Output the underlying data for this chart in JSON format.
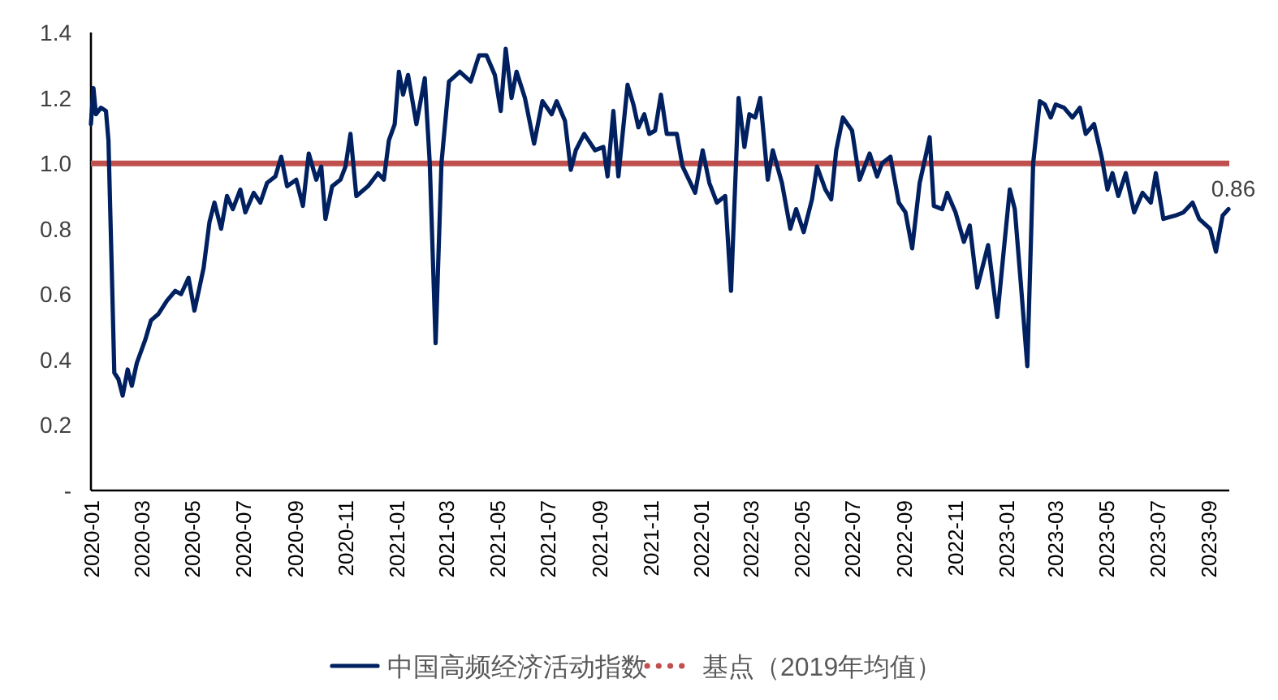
{
  "chart_data": {
    "type": "line",
    "x": [
      "2020-01-01",
      "2020-01-04",
      "2020-01-07",
      "2020-01-13",
      "2020-01-19",
      "2020-01-22",
      "2020-01-26",
      "2020-01-29",
      "2020-02-03",
      "2020-02-08",
      "2020-02-14",
      "2020-02-19",
      "2020-02-25",
      "2020-03-06",
      "2020-03-13",
      "2020-03-22",
      "2020-04-01",
      "2020-04-11",
      "2020-04-18",
      "2020-04-27",
      "2020-05-04",
      "2020-05-10",
      "2020-05-15",
      "2020-05-22",
      "2020-05-28",
      "2020-06-05",
      "2020-06-12",
      "2020-06-19",
      "2020-06-28",
      "2020-07-04",
      "2020-07-14",
      "2020-07-22",
      "2020-07-30",
      "2020-08-09",
      "2020-08-16",
      "2020-08-23",
      "2020-09-03",
      "2020-09-11",
      "2020-09-18",
      "2020-09-27",
      "2020-10-03",
      "2020-10-08",
      "2020-10-16",
      "2020-10-26",
      "2020-11-01",
      "2020-11-07",
      "2020-11-14",
      "2020-11-28",
      "2020-12-10",
      "2020-12-17",
      "2020-12-23",
      "2020-12-30",
      "2021-01-04",
      "2021-01-09",
      "2021-01-15",
      "2021-01-25",
      "2021-02-04",
      "2021-02-10",
      "2021-02-17",
      "2021-02-24",
      "2021-03-05",
      "2021-03-18",
      "2021-03-31",
      "2021-04-10",
      "2021-04-19",
      "2021-04-29",
      "2021-05-06",
      "2021-05-12",
      "2021-05-19",
      "2021-05-25",
      "2021-06-04",
      "2021-06-15",
      "2021-06-25",
      "2021-07-06",
      "2021-07-12",
      "2021-07-22",
      "2021-07-29",
      "2021-08-04",
      "2021-08-14",
      "2021-08-27",
      "2021-09-06",
      "2021-09-11",
      "2021-09-18",
      "2021-09-24",
      "2021-10-05",
      "2021-10-12",
      "2021-10-18",
      "2021-10-25",
      "2021-10-31",
      "2021-11-07",
      "2021-11-14",
      "2021-11-21",
      "2021-12-03",
      "2021-12-10",
      "2021-12-25",
      "2022-01-03",
      "2022-01-11",
      "2022-01-20",
      "2022-01-30",
      "2022-02-06",
      "2022-02-15",
      "2022-02-22",
      "2022-02-28",
      "2022-03-07",
      "2022-03-13",
      "2022-03-22",
      "2022-03-28",
      "2022-04-08",
      "2022-04-18",
      "2022-04-25",
      "2022-05-04",
      "2022-05-14",
      "2022-05-20",
      "2022-05-30",
      "2022-06-06",
      "2022-06-12",
      "2022-06-20",
      "2022-07-01",
      "2022-07-10",
      "2022-07-22",
      "2022-07-31",
      "2022-08-06",
      "2022-08-16",
      "2022-08-26",
      "2022-09-03",
      "2022-09-11",
      "2022-09-20",
      "2022-09-27",
      "2022-10-02",
      "2022-10-07",
      "2022-10-17",
      "2022-10-23",
      "2022-11-02",
      "2022-11-12",
      "2022-11-19",
      "2022-11-28",
      "2022-12-11",
      "2022-12-22",
      "2022-12-30",
      "2023-01-06",
      "2023-01-12",
      "2023-01-19",
      "2023-01-27",
      "2023-02-03",
      "2023-02-11",
      "2023-02-17",
      "2023-02-24",
      "2023-03-02",
      "2023-03-12",
      "2023-03-22",
      "2023-03-31",
      "2023-04-07",
      "2023-04-17",
      "2023-04-26",
      "2023-05-03",
      "2023-05-09",
      "2023-05-16",
      "2023-05-25",
      "2023-06-04",
      "2023-06-14",
      "2023-06-24",
      "2023-06-30",
      "2023-07-09",
      "2023-07-23",
      "2023-08-02",
      "2023-08-13",
      "2023-08-21",
      "2023-09-03",
      "2023-09-10",
      "2023-09-18",
      "2023-09-25"
    ],
    "series": [
      {
        "name": "中国高频经济活动指数",
        "color": "#002060",
        "values": [
          1.12,
          1.23,
          1.15,
          1.17,
          1.16,
          1.07,
          0.67,
          0.36,
          0.34,
          0.29,
          0.37,
          0.32,
          0.39,
          0.46,
          0.52,
          0.54,
          0.58,
          0.61,
          0.6,
          0.65,
          0.55,
          0.62,
          0.68,
          0.82,
          0.88,
          0.8,
          0.9,
          0.86,
          0.92,
          0.85,
          0.91,
          0.88,
          0.94,
          0.96,
          1.02,
          0.93,
          0.95,
          0.87,
          1.03,
          0.95,
          0.99,
          0.83,
          0.93,
          0.95,
          0.99,
          1.09,
          0.9,
          0.93,
          0.97,
          0.95,
          1.07,
          1.12,
          1.28,
          1.21,
          1.27,
          1.12,
          1.26,
          1.0,
          0.45,
          1.0,
          1.25,
          1.28,
          1.25,
          1.33,
          1.33,
          1.27,
          1.16,
          1.35,
          1.2,
          1.28,
          1.2,
          1.06,
          1.19,
          1.15,
          1.19,
          1.13,
          0.98,
          1.04,
          1.09,
          1.04,
          1.05,
          0.96,
          1.16,
          0.96,
          1.24,
          1.18,
          1.11,
          1.15,
          1.09,
          1.1,
          1.21,
          1.09,
          1.09,
          0.99,
          0.91,
          1.04,
          0.94,
          0.88,
          0.9,
          0.61,
          1.2,
          1.05,
          1.15,
          1.14,
          1.2,
          0.95,
          1.04,
          0.94,
          0.8,
          0.86,
          0.79,
          0.89,
          0.99,
          0.92,
          0.89,
          1.04,
          1.14,
          1.1,
          0.95,
          1.03,
          0.96,
          1.0,
          1.02,
          0.88,
          0.85,
          0.74,
          0.94,
          1.02,
          1.08,
          0.87,
          0.86,
          0.91,
          0.85,
          0.76,
          0.81,
          0.62,
          0.75,
          0.53,
          0.74,
          0.92,
          0.86,
          0.64,
          0.38,
          1.0,
          1.19,
          1.18,
          1.14,
          1.18,
          1.17,
          1.14,
          1.17,
          1.09,
          1.12,
          1.02,
          0.92,
          0.97,
          0.9,
          0.97,
          0.85,
          0.91,
          0.88,
          0.97,
          0.83,
          0.84,
          0.85,
          0.88,
          0.83,
          0.8,
          0.73,
          0.84,
          0.86
        ]
      }
    ],
    "xlim": [
      "2020-01-01",
      "2023-09-26"
    ],
    "xticks": [
      {
        "value": "2020-01-01",
        "label": "2020-01"
      },
      {
        "value": "2020-03-01",
        "label": "2020-03"
      },
      {
        "value": "2020-05-01",
        "label": "2020-05"
      },
      {
        "value": "2020-07-01",
        "label": "2020-07"
      },
      {
        "value": "2020-09-01",
        "label": "2020-09"
      },
      {
        "value": "2020-11-01",
        "label": "2020-11"
      },
      {
        "value": "2021-01-01",
        "label": "2021-01"
      },
      {
        "value": "2021-03-01",
        "label": "2021-03"
      },
      {
        "value": "2021-05-01",
        "label": "2021-05"
      },
      {
        "value": "2021-07-01",
        "label": "2021-07"
      },
      {
        "value": "2021-09-01",
        "label": "2021-09"
      },
      {
        "value": "2021-11-01",
        "label": "2021-11"
      },
      {
        "value": "2022-01-01",
        "label": "2022-01"
      },
      {
        "value": "2022-03-01",
        "label": "2022-03"
      },
      {
        "value": "2022-05-01",
        "label": "2022-05"
      },
      {
        "value": "2022-07-01",
        "label": "2022-07"
      },
      {
        "value": "2022-09-01",
        "label": "2022-09"
      },
      {
        "value": "2022-11-01",
        "label": "2022-11"
      },
      {
        "value": "2023-01-01",
        "label": "2023-01"
      },
      {
        "value": "2023-03-01",
        "label": "2023-03"
      },
      {
        "value": "2023-05-01",
        "label": "2023-05"
      },
      {
        "value": "2023-07-01",
        "label": "2023-07"
      },
      {
        "value": "2023-09-01",
        "label": "2023-09"
      }
    ],
    "ylim": [
      0,
      1.4
    ],
    "yticks": [
      {
        "value": 0,
        "label": "-"
      },
      0.2,
      0.4,
      0.6,
      0.8,
      {
        "value": 1.0,
        "label": "1.0"
      },
      1.2,
      1.4
    ],
    "ref_lines": [
      {
        "axis": "y",
        "value": 1.0,
        "label": "基点（2019年均值）",
        "color": "#c0504d",
        "line_style": "solid"
      }
    ],
    "annotations": [
      {
        "text": "0.86",
        "x": "2023-09-25",
        "y": 0.86
      }
    ],
    "grid": false,
    "legend": "bottom",
    "marker": "none",
    "line_style": "solid"
  }
}
